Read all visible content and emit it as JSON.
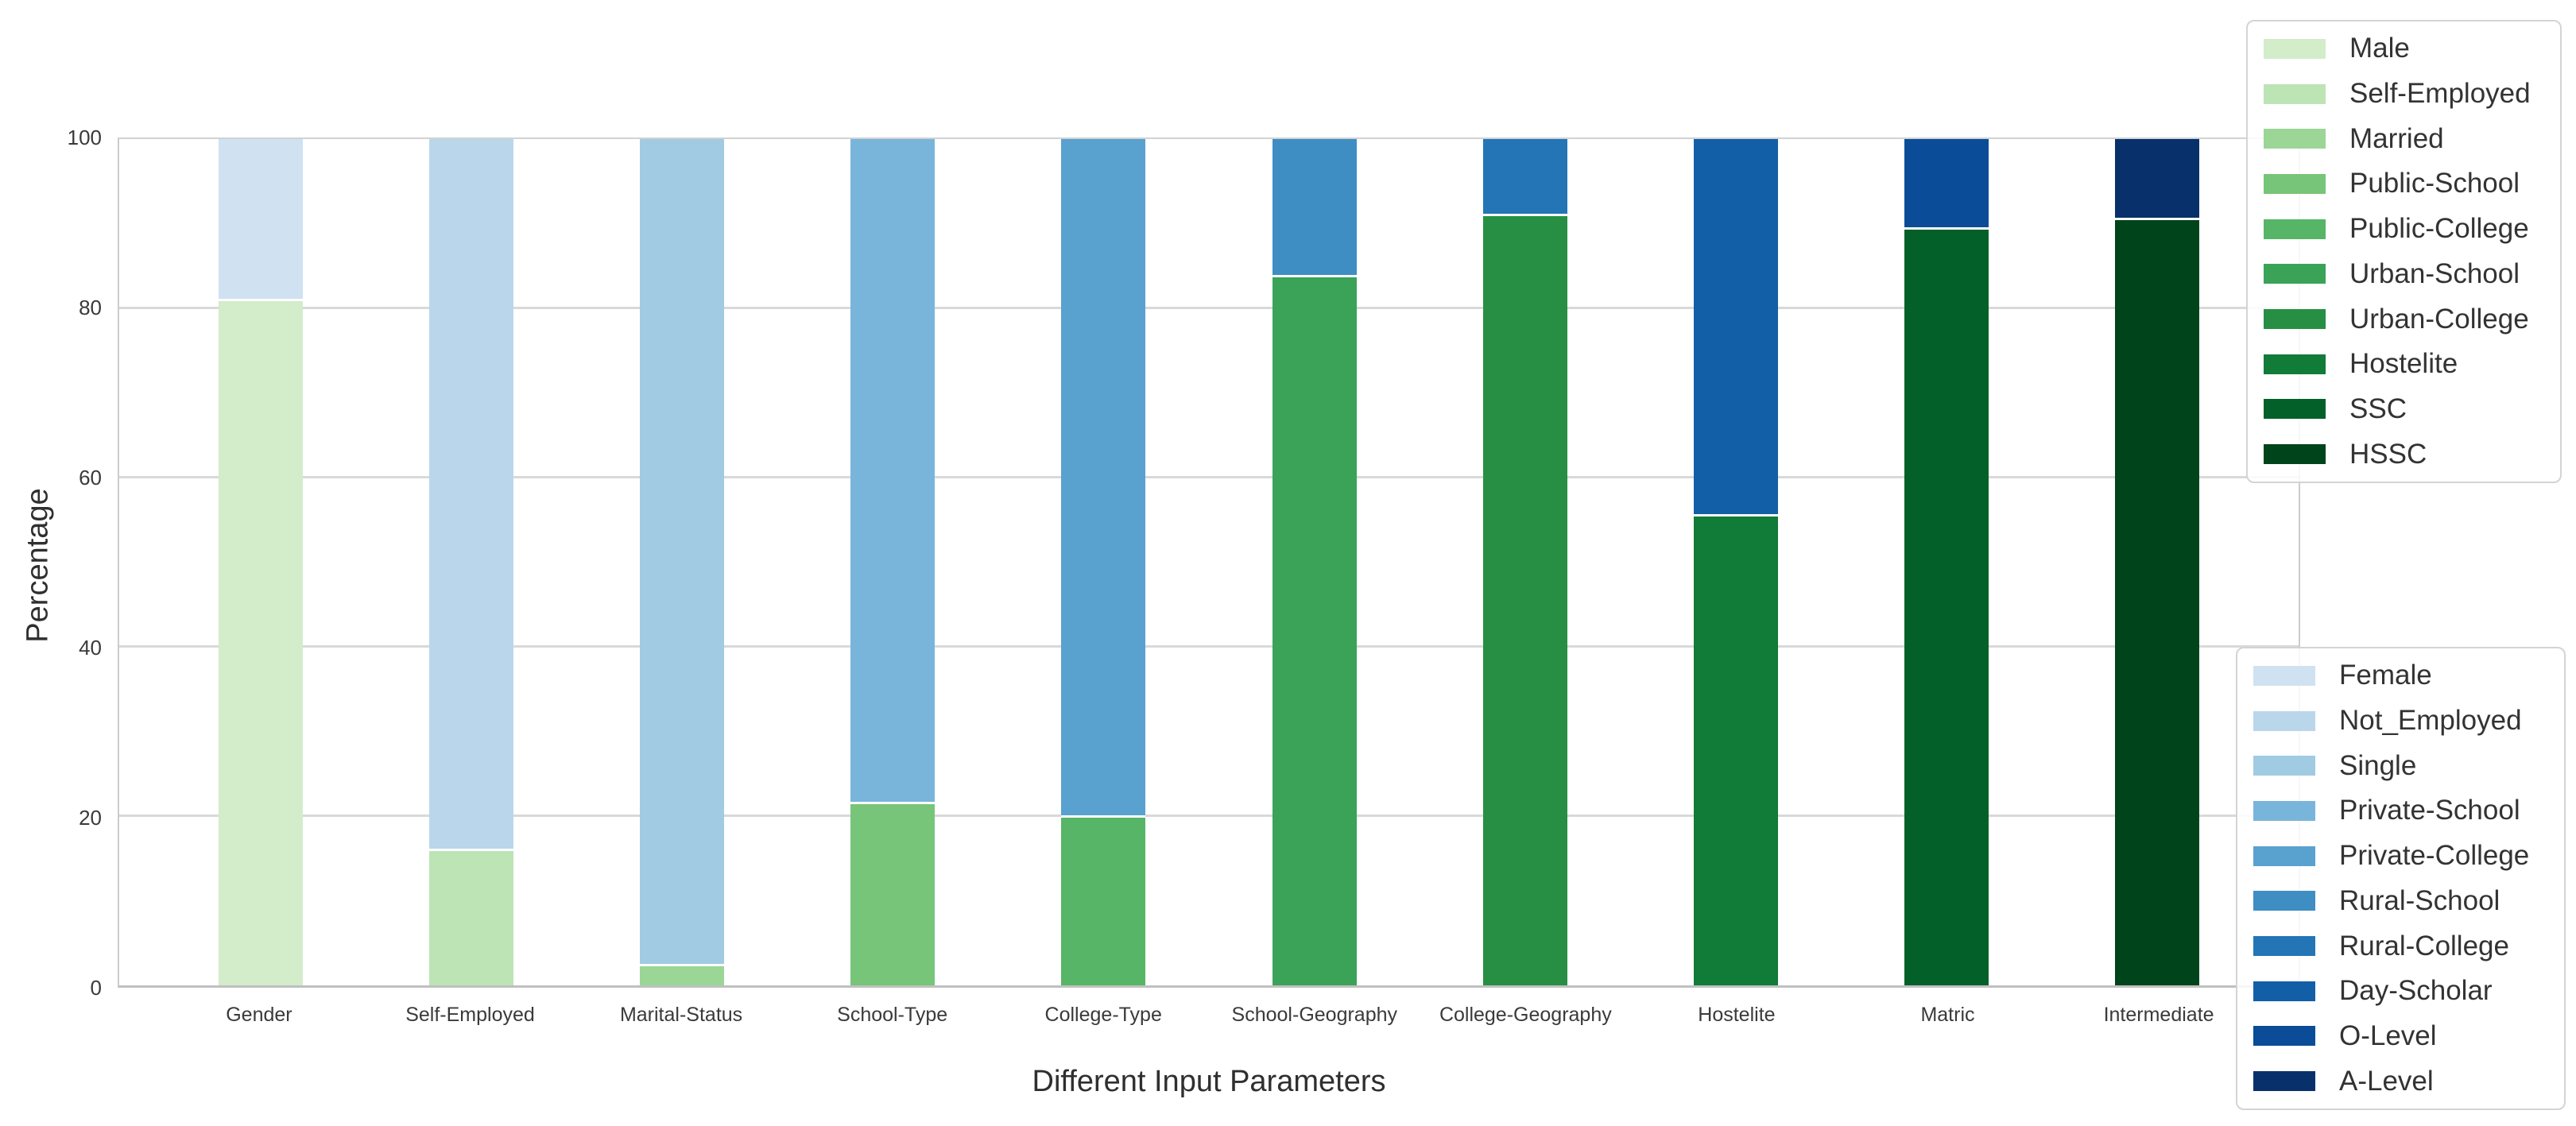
{
  "figure": {
    "xlabel": "Different Input Parameters",
    "ylabel": "Percentage"
  },
  "chart_data": {
    "type": "bar",
    "stacked": true,
    "title": "",
    "xlabel": "Different Input Parameters",
    "ylabel": "Percentage",
    "ylim": [
      0,
      100
    ],
    "yticks": [
      0,
      20,
      40,
      60,
      80,
      100
    ],
    "grid": "horizontal",
    "bar_width_frac": 0.4,
    "categories": [
      "Gender",
      "Self-Employed",
      "Marital-Status",
      "School-Type",
      "College-Type",
      "School-Geography",
      "College-Geography",
      "Hostelite",
      "Matric",
      "Intermediate"
    ],
    "bars": [
      {
        "category": "Gender",
        "bottom": {
          "label": "Male",
          "value": 80.8,
          "color": "#d3ecca"
        },
        "top": {
          "label": "Female",
          "value": 19.2,
          "color": "#d0e1f2"
        }
      },
      {
        "category": "Self-Employed",
        "bottom": {
          "label": "Self-Employed",
          "value": 15.9,
          "color": "#bce4b5"
        },
        "top": {
          "label": "Not_Employed",
          "value": 84.1,
          "color": "#bad6eb"
        }
      },
      {
        "category": "Marital-Status",
        "bottom": {
          "label": "Married",
          "value": 2.3,
          "color": "#9bd696"
        },
        "top": {
          "label": "Single",
          "value": 97.7,
          "color": "#a0cbe2"
        }
      },
      {
        "category": "School-Type",
        "bottom": {
          "label": "Public-School",
          "value": 21.4,
          "color": "#77c578"
        },
        "top": {
          "label": "Private-School",
          "value": 78.6,
          "color": "#79b5db"
        }
      },
      {
        "category": "College-Type",
        "bottom": {
          "label": "Public-College",
          "value": 19.8,
          "color": "#56b567"
        },
        "top": {
          "label": "Private-College",
          "value": 80.2,
          "color": "#59a1cf"
        }
      },
      {
        "category": "School-Geography",
        "bottom": {
          "label": "Urban-School",
          "value": 83.7,
          "color": "#3aa357"
        },
        "top": {
          "label": "Rural-School",
          "value": 16.3,
          "color": "#3e8ec4"
        }
      },
      {
        "category": "College-Geography",
        "bottom": {
          "label": "Urban-College",
          "value": 90.9,
          "color": "#278f44"
        },
        "top": {
          "label": "Rural-College",
          "value": 9.1,
          "color": "#2475b6"
        }
      },
      {
        "category": "Hostelite",
        "bottom": {
          "label": "Hostelite",
          "value": 55.4,
          "color": "#117b38"
        },
        "top": {
          "label": "Day-Scholar",
          "value": 44.6,
          "color": "#135fa7"
        }
      },
      {
        "category": "Matric",
        "bottom": {
          "label": "SSC",
          "value": 89.3,
          "color": "#046029"
        },
        "top": {
          "label": "O-Level",
          "value": 10.7,
          "color": "#0a4c98"
        }
      },
      {
        "category": "Intermediate",
        "bottom": {
          "label": "HSSC",
          "value": 90.4,
          "color": "#00441b"
        },
        "top": {
          "label": "A-Level",
          "value": 9.6,
          "color": "#08306b"
        }
      }
    ],
    "legend_top": {
      "position": "upper right",
      "items": [
        {
          "label": "Male",
          "color": "#d3ecca"
        },
        {
          "label": "Self-Employed",
          "color": "#bce4b5"
        },
        {
          "label": "Married",
          "color": "#9bd696"
        },
        {
          "label": "Public-School",
          "color": "#77c578"
        },
        {
          "label": "Public-College",
          "color": "#56b567"
        },
        {
          "label": "Urban-School",
          "color": "#3aa357"
        },
        {
          "label": "Urban-College",
          "color": "#278f44"
        },
        {
          "label": "Hostelite",
          "color": "#117b38"
        },
        {
          "label": "SSC",
          "color": "#046029"
        },
        {
          "label": "HSSC",
          "color": "#00441b"
        }
      ]
    },
    "legend_bottom": {
      "position": "lower right",
      "items": [
        {
          "label": "Female",
          "color": "#d0e1f2"
        },
        {
          "label": "Not_Employed",
          "color": "#bad6eb"
        },
        {
          "label": "Single",
          "color": "#a0cbe2"
        },
        {
          "label": "Private-School",
          "color": "#79b5db"
        },
        {
          "label": "Private-College",
          "color": "#59a1cf"
        },
        {
          "label": "Rural-School",
          "color": "#3e8ec4"
        },
        {
          "label": "Rural-College",
          "color": "#2475b6"
        },
        {
          "label": "Day-Scholar",
          "color": "#135fa7"
        },
        {
          "label": "O-Level",
          "color": "#0a4c98"
        },
        {
          "label": "A-Level",
          "color": "#08306b"
        }
      ]
    }
  }
}
